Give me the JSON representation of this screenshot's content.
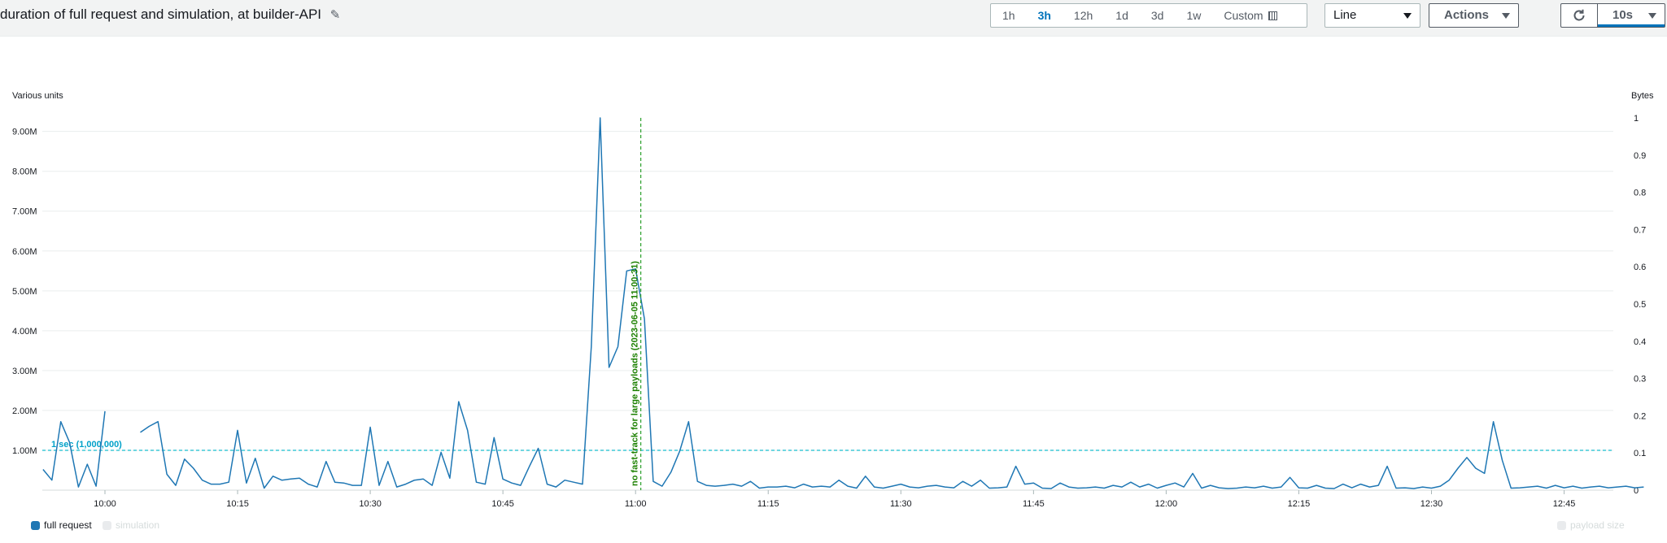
{
  "header": {
    "title": "duration of full request and simulation, at builder-API",
    "time_ranges": [
      {
        "label": "1h",
        "active": false
      },
      {
        "label": "3h",
        "active": true
      },
      {
        "label": "12h",
        "active": false
      },
      {
        "label": "1d",
        "active": false
      },
      {
        "label": "3d",
        "active": false
      },
      {
        "label": "1w",
        "active": false
      }
    ],
    "custom_label": "Custom",
    "chart_type_select": "Line",
    "actions_label": "Actions",
    "refresh_interval": "10s"
  },
  "colors": {
    "series": "#1f77b4",
    "threshold": "#17becf",
    "annotation": "#2ca02c",
    "accent": "#0073bb"
  },
  "chart_data": {
    "type": "line",
    "y_left_label": "Various units",
    "y_right_label": "Bytes",
    "y_left_ticks": [
      "1.00M",
      "2.00M",
      "3.00M",
      "4.00M",
      "5.00M",
      "6.00M",
      "7.00M",
      "8.00M",
      "9.00M"
    ],
    "y_right_ticks": [
      "0",
      "0.1",
      "0.2",
      "0.3",
      "0.4",
      "0.5",
      "0.6",
      "0.7",
      "0.8",
      "0.9",
      "1"
    ],
    "x_ticks": [
      "10:00",
      "10:15",
      "10:30",
      "10:45",
      "11:00",
      "11:15",
      "11:30",
      "11:45",
      "12:00",
      "12:15",
      "12:30",
      "12:45"
    ],
    "ylim_left": [
      0,
      9340000
    ],
    "ylim_right": [
      0,
      1
    ],
    "xlim_minutes": [
      -7,
      150
    ],
    "threshold": {
      "label": "1 sec (1,000,000)",
      "value": 1000000
    },
    "annotation": {
      "label": "no fast-track for large payloads (2023-06-05 11:00:31)",
      "x_minutes": 0.5
    },
    "legend": [
      {
        "name": "full request",
        "enabled": true
      },
      {
        "name": "simulation",
        "enabled": false
      },
      {
        "name": "payload size",
        "enabled": false
      }
    ],
    "series": [
      {
        "name": "full request",
        "segments": [
          [
            [
              -67,
              0.52
            ],
            [
              -66,
              0.25
            ],
            [
              -65,
              1.72
            ],
            [
              -64,
              1.2
            ],
            [
              -63,
              0.08
            ],
            [
              -62,
              0.65
            ],
            [
              -61,
              0.1
            ],
            [
              -60,
              1.98
            ]
          ],
          [
            [
              -56,
              1.45
            ],
            [
              -55,
              1.6
            ],
            [
              -54,
              1.72
            ],
            [
              -53,
              0.4
            ],
            [
              -52,
              0.12
            ],
            [
              -51,
              0.78
            ],
            [
              -50,
              0.55
            ],
            [
              -49,
              0.25
            ],
            [
              -48,
              0.15
            ],
            [
              -47,
              0.15
            ],
            [
              -46,
              0.2
            ],
            [
              -45,
              1.5
            ],
            [
              -44,
              0.18
            ],
            [
              -43,
              0.8
            ],
            [
              -42,
              0.05
            ],
            [
              -41,
              0.35
            ],
            [
              -40,
              0.25
            ],
            [
              -39,
              0.28
            ],
            [
              -38,
              0.3
            ],
            [
              -37,
              0.15
            ],
            [
              -36,
              0.08
            ],
            [
              -35,
              0.72
            ],
            [
              -34,
              0.2
            ],
            [
              -33,
              0.18
            ],
            [
              -32,
              0.12
            ],
            [
              -31,
              0.12
            ],
            [
              -30,
              1.58
            ],
            [
              -29,
              0.12
            ],
            [
              -28,
              0.72
            ],
            [
              -27,
              0.08
            ],
            [
              -26,
              0.15
            ],
            [
              -25,
              0.25
            ],
            [
              -24,
              0.28
            ],
            [
              -23,
              0.12
            ],
            [
              -22,
              0.95
            ],
            [
              -21,
              0.3
            ],
            [
              -20,
              2.22
            ],
            [
              -19,
              1.5
            ],
            [
              -18,
              0.2
            ],
            [
              -17,
              0.15
            ],
            [
              -16,
              1.32
            ],
            [
              -15,
              0.28
            ],
            [
              -14,
              0.18
            ],
            [
              -13,
              0.12
            ],
            [
              -12,
              0.6
            ],
            [
              -11,
              1.05
            ],
            [
              -10,
              0.15
            ],
            [
              -9,
              0.08
            ],
            [
              -8,
              0.25
            ],
            [
              -7,
              0.2
            ],
            [
              -6,
              0.15
            ],
            [
              -5,
              3.6
            ],
            [
              -4,
              9.34
            ],
            [
              -3,
              3.08
            ],
            [
              -2,
              3.6
            ],
            [
              -1,
              5.5
            ],
            [
              0,
              5.55
            ],
            [
              1,
              4.3
            ],
            [
              2,
              0.22
            ],
            [
              3,
              0.1
            ],
            [
              4,
              0.45
            ],
            [
              5,
              0.98
            ],
            [
              6,
              1.72
            ],
            [
              7,
              0.22
            ],
            [
              8,
              0.12
            ],
            [
              9,
              0.1
            ],
            [
              10,
              0.12
            ],
            [
              11,
              0.15
            ],
            [
              12,
              0.1
            ],
            [
              13,
              0.22
            ],
            [
              14,
              0.05
            ],
            [
              15,
              0.08
            ],
            [
              16,
              0.08
            ],
            [
              17,
              0.1
            ],
            [
              18,
              0.06
            ],
            [
              19,
              0.15
            ],
            [
              20,
              0.08
            ],
            [
              21,
              0.1
            ],
            [
              22,
              0.08
            ],
            [
              23,
              0.25
            ],
            [
              24,
              0.1
            ],
            [
              25,
              0.05
            ],
            [
              26,
              0.35
            ],
            [
              27,
              0.08
            ],
            [
              28,
              0.05
            ],
            [
              29,
              0.1
            ],
            [
              30,
              0.15
            ],
            [
              31,
              0.08
            ],
            [
              32,
              0.06
            ],
            [
              33,
              0.1
            ],
            [
              34,
              0.12
            ],
            [
              35,
              0.08
            ],
            [
              36,
              0.06
            ],
            [
              37,
              0.22
            ],
            [
              38,
              0.1
            ],
            [
              39,
              0.25
            ],
            [
              40,
              0.05
            ],
            [
              41,
              0.06
            ],
            [
              42,
              0.08
            ],
            [
              43,
              0.6
            ],
            [
              44,
              0.15
            ],
            [
              45,
              0.18
            ],
            [
              46,
              0.05
            ],
            [
              47,
              0.04
            ],
            [
              48,
              0.18
            ],
            [
              49,
              0.08
            ],
            [
              50,
              0.05
            ],
            [
              51,
              0.06
            ],
            [
              52,
              0.08
            ],
            [
              53,
              0.05
            ],
            [
              54,
              0.12
            ],
            [
              55,
              0.08
            ],
            [
              56,
              0.2
            ],
            [
              57,
              0.08
            ],
            [
              58,
              0.15
            ],
            [
              59,
              0.05
            ],
            [
              60,
              0.12
            ],
            [
              61,
              0.18
            ],
            [
              62,
              0.08
            ],
            [
              63,
              0.42
            ],
            [
              64,
              0.05
            ],
            [
              65,
              0.12
            ],
            [
              66,
              0.06
            ],
            [
              67,
              0.04
            ],
            [
              68,
              0.05
            ],
            [
              69,
              0.08
            ],
            [
              70,
              0.06
            ],
            [
              71,
              0.1
            ],
            [
              72,
              0.05
            ],
            [
              73,
              0.08
            ],
            [
              74,
              0.32
            ],
            [
              75,
              0.06
            ],
            [
              76,
              0.05
            ],
            [
              77,
              0.12
            ],
            [
              78,
              0.05
            ],
            [
              79,
              0.04
            ],
            [
              80,
              0.15
            ],
            [
              81,
              0.06
            ],
            [
              82,
              0.15
            ],
            [
              83,
              0.08
            ],
            [
              84,
              0.12
            ],
            [
              85,
              0.6
            ],
            [
              86,
              0.05
            ],
            [
              87,
              0.06
            ],
            [
              88,
              0.04
            ],
            [
              89,
              0.08
            ],
            [
              90,
              0.05
            ],
            [
              91,
              0.1
            ],
            [
              92,
              0.25
            ],
            [
              93,
              0.55
            ],
            [
              94,
              0.82
            ],
            [
              95,
              0.55
            ],
            [
              96,
              0.42
            ],
            [
              97,
              1.72
            ],
            [
              98,
              0.75
            ],
            [
              99,
              0.05
            ],
            [
              100,
              0.06
            ],
            [
              101,
              0.08
            ],
            [
              102,
              0.1
            ],
            [
              103,
              0.05
            ],
            [
              104,
              0.12
            ],
            [
              105,
              0.06
            ],
            [
              106,
              0.1
            ],
            [
              107,
              0.05
            ],
            [
              108,
              0.08
            ],
            [
              109,
              0.1
            ],
            [
              110,
              0.06
            ],
            [
              111,
              0.08
            ],
            [
              112,
              0.1
            ],
            [
              113,
              0.06
            ],
            [
              114,
              0.08
            ]
          ]
        ]
      }
    ]
  }
}
